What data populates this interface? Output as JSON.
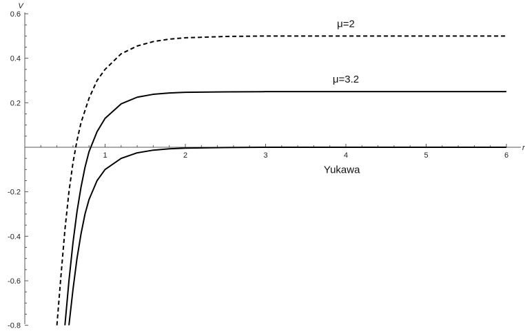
{
  "chart_data": {
    "type": "line",
    "title": "",
    "xlabel": "r",
    "ylabel": "V",
    "xlim": [
      0,
      6.1
    ],
    "ylim": [
      -0.8,
      0.6
    ],
    "x_ticks": [
      1,
      2,
      3,
      4,
      5,
      6
    ],
    "x_tick_labels": [
      "1",
      "2",
      "3",
      "4",
      "5",
      "6"
    ],
    "y_ticks": [
      -0.8,
      -0.6,
      -0.4,
      -0.2,
      0.2,
      0.4,
      0.6
    ],
    "y_tick_labels": [
      "-0.8",
      "-0.6",
      "-0.4",
      "-0.2",
      "0.2",
      "0.4",
      "0.6"
    ],
    "grid": false,
    "annotation": "Yukawa",
    "series": [
      {
        "name": "μ=2",
        "style": "dashed",
        "color": "#000000",
        "x": [
          0.4,
          0.45,
          0.5,
          0.55,
          0.6,
          0.65,
          0.7,
          0.8,
          0.9,
          1.0,
          1.2,
          1.4,
          1.6,
          1.8,
          2.0,
          2.5,
          3.0,
          4.0,
          5.0,
          6.0
        ],
        "y": [
          -0.8,
          -0.58,
          -0.37,
          -0.2,
          -0.07,
          0.03,
          0.11,
          0.22,
          0.3,
          0.35,
          0.42,
          0.455,
          0.475,
          0.486,
          0.492,
          0.498,
          0.5,
          0.5,
          0.5,
          0.5
        ]
      },
      {
        "name": "μ=3.2",
        "style": "solid",
        "color": "#000000",
        "x": [
          0.5,
          0.55,
          0.6,
          0.65,
          0.7,
          0.75,
          0.8,
          0.9,
          1.0,
          1.2,
          1.4,
          1.6,
          1.8,
          2.0,
          2.5,
          3.0,
          4.0,
          5.0,
          6.0
        ],
        "y": [
          -0.8,
          -0.6,
          -0.43,
          -0.29,
          -0.18,
          -0.09,
          -0.02,
          0.07,
          0.13,
          0.195,
          0.225,
          0.238,
          0.244,
          0.247,
          0.249,
          0.25,
          0.25,
          0.25,
          0.25
        ]
      },
      {
        "name": "",
        "style": "solid",
        "color": "#000000",
        "x": [
          0.55,
          0.6,
          0.65,
          0.7,
          0.75,
          0.8,
          0.9,
          1.0,
          1.2,
          1.4,
          1.6,
          1.8,
          2.0,
          2.5,
          3.0,
          4.0,
          5.0,
          6.0
        ],
        "y": [
          -0.8,
          -0.64,
          -0.5,
          -0.39,
          -0.3,
          -0.235,
          -0.15,
          -0.1,
          -0.05,
          -0.025,
          -0.013,
          -0.007,
          -0.004,
          -0.001,
          0.0,
          0.0,
          0.0,
          0.0
        ]
      }
    ],
    "curve_labels": [
      {
        "text": "μ=2",
        "x": 4.0,
        "y": 0.54
      },
      {
        "text": "μ=3.2",
        "x": 4.0,
        "y": 0.29
      }
    ],
    "annotation_pos": {
      "x": 3.95,
      "y": -0.1
    }
  }
}
